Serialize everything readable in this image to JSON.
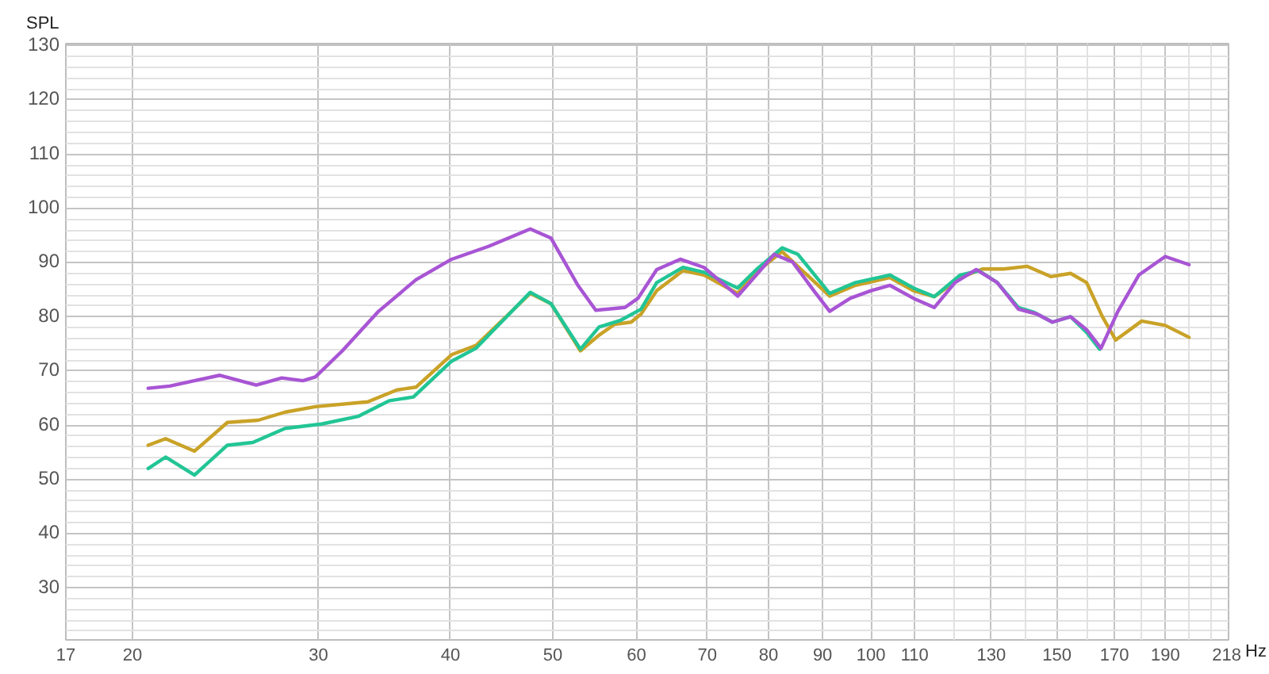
{
  "chart_data": {
    "type": "line",
    "xlabel": "Hz",
    "ylabel": "SPL",
    "log": "x",
    "grid": true,
    "line_style": "solid",
    "xlim": [
      17.3,
      218
    ],
    "ylim": [
      20,
      130
    ],
    "xticks": [
      {
        "value": 17.3,
        "label": "17"
      },
      20,
      30,
      40,
      50,
      60,
      70,
      80,
      90,
      100,
      110,
      {
        "value": 120,
        "label": null
      },
      130,
      {
        "value": 140,
        "label": null
      },
      150,
      {
        "value": 160,
        "label": null
      },
      170,
      {
        "value": 180,
        "label": null
      },
      190,
      {
        "value": 200,
        "label": null
      },
      {
        "value": 210,
        "label": null
      },
      218
    ],
    "yticks": [
      {
        "value": 22,
        "label": null
      },
      {
        "value": 24,
        "label": null
      },
      {
        "value": 26,
        "label": null
      },
      {
        "value": 28,
        "label": null
      },
      30,
      {
        "value": 32,
        "label": null
      },
      {
        "value": 34,
        "label": null
      },
      {
        "value": 36,
        "label": null
      },
      {
        "value": 38,
        "label": null
      },
      40,
      {
        "value": 42,
        "label": null
      },
      {
        "value": 44,
        "label": null
      },
      {
        "value": 46,
        "label": null
      },
      {
        "value": 48,
        "label": null
      },
      50,
      {
        "value": 52,
        "label": null
      },
      {
        "value": 54,
        "label": null
      },
      {
        "value": 56,
        "label": null
      },
      {
        "value": 58,
        "label": null
      },
      60,
      {
        "value": 62,
        "label": null
      },
      {
        "value": 64,
        "label": null
      },
      {
        "value": 66,
        "label": null
      },
      {
        "value": 68,
        "label": null
      },
      70,
      {
        "value": 72,
        "label": null
      },
      {
        "value": 74,
        "label": null
      },
      {
        "value": 76,
        "label": null
      },
      {
        "value": 78,
        "label": null
      },
      80,
      {
        "value": 82,
        "label": null
      },
      {
        "value": 84,
        "label": null
      },
      {
        "value": 86,
        "label": null
      },
      {
        "value": 88,
        "label": null
      },
      90,
      {
        "value": 92,
        "label": null
      },
      {
        "value": 94,
        "label": null
      },
      {
        "value": 96,
        "label": null
      },
      {
        "value": 98,
        "label": null
      },
      100,
      {
        "value": 102,
        "label": null
      },
      {
        "value": 104,
        "label": null
      },
      {
        "value": 106,
        "label": null
      },
      {
        "value": 108,
        "label": null
      },
      110,
      {
        "value": 112,
        "label": null
      },
      {
        "value": 114,
        "label": null
      },
      {
        "value": 116,
        "label": null
      },
      {
        "value": 118,
        "label": null
      },
      120,
      {
        "value": 122,
        "label": null
      },
      {
        "value": 124,
        "label": null
      },
      {
        "value": 126,
        "label": null
      },
      {
        "value": 128,
        "label": null
      },
      130
    ],
    "series": [
      {
        "color": "#c9a227",
        "x": [
          20.7,
          21.5,
          22.9,
          24.6,
          26.3,
          27.9,
          29.8,
          33.4,
          35.6,
          37.1,
          40.1,
          42.3,
          47.6,
          49.8,
          53.1,
          55.3,
          57.2,
          59.3,
          60.6,
          62.7,
          66.4,
          69.5,
          74.8,
          77.9,
          82.4,
          91.4,
          96.7,
          104.2,
          109.7,
          114.8,
          121.5,
          127.5,
          133.5,
          140.5,
          148.0,
          154.5,
          160.0,
          165.6,
          170.5,
          180.4,
          189.9,
          200
        ],
        "values": [
          56.3,
          57.5,
          55.2,
          60.5,
          60.9,
          62.4,
          63.4,
          64.3,
          66.5,
          67.0,
          73.0,
          74.7,
          84.3,
          82.4,
          73.7,
          76.6,
          78.6,
          79.0,
          80.5,
          84.8,
          88.5,
          87.7,
          84.3,
          88.2,
          92.0,
          83.8,
          85.8,
          87.2,
          84.8,
          83.7,
          87.2,
          88.8,
          88.8,
          89.3,
          87.4,
          88.0,
          86.3,
          80.0,
          75.7,
          79.2,
          78.4,
          76.2
        ]
      },
      {
        "color": "#22c595",
        "x": [
          20.7,
          21.5,
          22.9,
          24.6,
          26.0,
          27.9,
          30.2,
          32.7,
          35.0,
          36.9,
          40.1,
          42.3,
          47.6,
          49.8,
          53.1,
          55.3,
          57.9,
          60.6,
          62.7,
          66.4,
          69.5,
          74.8,
          77.9,
          82.4,
          85.3,
          91.4,
          96.7,
          104.2,
          109.7,
          114.8,
          121.5,
          126.5,
          131.7,
          137.9,
          142.7,
          148.5,
          154.5,
          160.0,
          164.6
        ],
        "values": [
          52.0,
          54.1,
          50.8,
          56.3,
          56.8,
          59.4,
          60.2,
          61.6,
          64.5,
          65.2,
          71.8,
          74.2,
          84.5,
          82.4,
          74.0,
          78.1,
          79.3,
          81.4,
          86.3,
          89.1,
          88.2,
          85.3,
          88.7,
          92.7,
          91.5,
          84.3,
          86.3,
          87.7,
          85.3,
          83.7,
          87.7,
          88.5,
          86.3,
          81.7,
          80.8,
          79.0,
          80.0,
          77.1,
          74.0
        ]
      },
      {
        "color": "#a855d4",
        "x": [
          20.7,
          21.7,
          24.2,
          26.2,
          27.7,
          29.0,
          29.8,
          31.6,
          34.2,
          37.1,
          40.1,
          43.5,
          47.6,
          49.8,
          52.8,
          54.9,
          58.5,
          60.2,
          62.7,
          66.0,
          69.5,
          74.8,
          77.9,
          81.0,
          84.3,
          88.3,
          91.4,
          95.6,
          100,
          104.2,
          109.7,
          114.8,
          120.1,
          125.8,
          131.7,
          137.9,
          143.6,
          148.5,
          154.5,
          160.0,
          165.1,
          171.3,
          179.3,
          189.9,
          200
        ],
        "values": [
          66.8,
          67.2,
          69.2,
          67.4,
          68.7,
          68.2,
          68.9,
          73.7,
          81.0,
          86.8,
          90.6,
          93.0,
          96.2,
          94.5,
          85.8,
          81.2,
          81.7,
          83.4,
          88.7,
          90.6,
          89.1,
          83.8,
          87.7,
          91.5,
          90.1,
          84.8,
          81.0,
          83.4,
          84.8,
          85.8,
          83.4,
          81.7,
          86.3,
          88.7,
          86.3,
          81.4,
          80.5,
          79.0,
          80.0,
          77.6,
          74.2,
          81.0,
          87.7,
          91.1,
          89.6
        ]
      }
    ]
  }
}
